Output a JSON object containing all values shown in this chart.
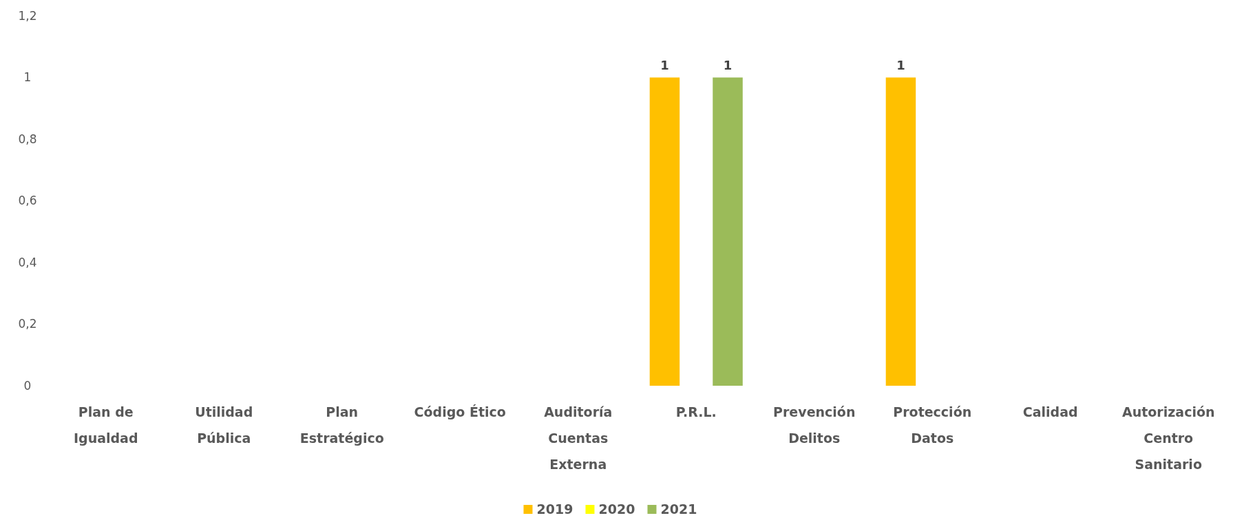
{
  "chart_data": {
    "type": "bar",
    "categories": [
      "Plan de Igualdad",
      "Utilidad Pública",
      "Plan Estratégico",
      "Código Ético",
      "Auditoría Cuentas Externa",
      "P.R.L.",
      "Prevención Delitos",
      "Protección Datos",
      "Calidad",
      "Autorización Centro Sanitario"
    ],
    "series": [
      {
        "name": "2019",
        "color": "#ffc000",
        "values": [
          null,
          null,
          null,
          null,
          null,
          1,
          null,
          1,
          null,
          null
        ]
      },
      {
        "name": "2020",
        "color": "#ffff00",
        "values": [
          null,
          null,
          null,
          null,
          null,
          null,
          null,
          null,
          null,
          null
        ]
      },
      {
        "name": "2021",
        "color": "#9bbb59",
        "values": [
          null,
          null,
          null,
          null,
          null,
          1,
          null,
          null,
          null,
          null
        ]
      }
    ],
    "ylim": [
      0,
      1.2
    ],
    "yticks": [
      0,
      {
        "value": 0.2,
        "label": "0,2"
      },
      {
        "value": 0.4,
        "label": "0,4"
      },
      {
        "value": 0.6,
        "label": "0,6"
      },
      {
        "value": 0.8,
        "label": "0,8"
      },
      1,
      {
        "value": 1.2,
        "label": "1,2"
      }
    ],
    "data_labels": true,
    "grid": false,
    "legend": "bottom"
  }
}
